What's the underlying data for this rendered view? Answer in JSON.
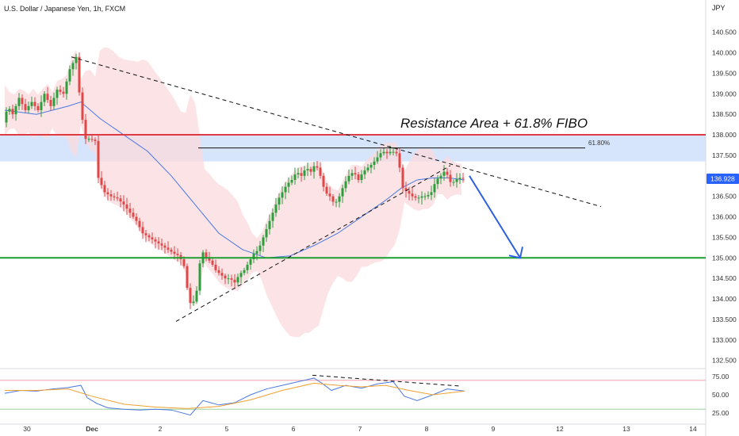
{
  "header": {
    "symbol_title": "U.S. Dollar / Japanese Yen, 1h, FXCM",
    "currency": "JPY"
  },
  "colors": {
    "resistance_line": "#e03a44",
    "support_line": "#1a9e2e",
    "resistance_zone": "#cfe0fb",
    "candle_up": "#2e9e3c",
    "candle_down": "#e04848",
    "moving_average": "#4a78e0",
    "envelope": "#fbdadd",
    "rsi_line": "#4a78e0",
    "rsi_signal": "#f0a030",
    "price_badge": "#2962ff",
    "forecast_arrow": "#2f62e0"
  },
  "chart_data": [
    {
      "type": "candlestick",
      "pair": "USD/JPY",
      "timeframe": "1h",
      "ylim": [
        132.3,
        140.9
      ],
      "y_ticks": [
        132.5,
        133.0,
        133.5,
        134.0,
        134.5,
        135.0,
        135.5,
        136.0,
        136.5,
        137.0,
        137.5,
        138.0,
        138.5,
        139.0,
        139.5,
        140.0,
        140.5
      ],
      "y_tick_labels": [
        "132.500",
        "133.000",
        "133.500",
        "134.000",
        "134.500",
        "135.000",
        "135.500",
        "136.000",
        "136.500",
        "137.000",
        "137.500",
        "138.000",
        "138.500",
        "139.000",
        "139.500",
        "140.000",
        "140.500"
      ],
      "x_ticks": [
        "30",
        "Dec",
        "2",
        "5",
        "6",
        "7",
        "8",
        "9",
        "12",
        "13",
        "14"
      ],
      "last_price": 136.928,
      "last_price_label": "136.928",
      "resistance_level": 138.0,
      "resistance_zone": [
        137.35,
        138.0
      ],
      "support_level": 135.0,
      "fibo_label": "61.80%",
      "fibo_level": 137.68,
      "annotation": "Resistance Area + 61.8% FIBO",
      "path": [
        [
          0,
          138.3
        ],
        [
          6,
          138.7
        ],
        [
          12,
          138.5
        ],
        [
          20,
          138.9
        ],
        [
          28,
          138.6
        ],
        [
          36,
          138.8
        ],
        [
          44,
          138.6
        ],
        [
          52,
          139.0
        ],
        [
          60,
          138.7
        ],
        [
          68,
          139.1
        ],
        [
          76,
          139.0
        ],
        [
          84,
          139.6
        ],
        [
          92,
          139.9
        ],
        [
          98,
          138.6
        ],
        [
          104,
          137.9
        ],
        [
          110,
          137.9
        ],
        [
          116,
          137.85
        ],
        [
          120,
          136.95
        ],
        [
          128,
          136.6
        ],
        [
          136,
          136.5
        ],
        [
          144,
          136.45
        ],
        [
          152,
          136.3
        ],
        [
          160,
          136.1
        ],
        [
          168,
          135.9
        ],
        [
          176,
          135.6
        ],
        [
          184,
          135.5
        ],
        [
          192,
          135.4
        ],
        [
          200,
          135.3
        ],
        [
          208,
          135.2
        ],
        [
          216,
          135.1
        ],
        [
          222,
          135.05
        ],
        [
          228,
          134.8
        ],
        [
          234,
          134.0
        ],
        [
          238,
          133.8
        ],
        [
          244,
          134.2
        ],
        [
          250,
          135.2
        ],
        [
          256,
          135.0
        ],
        [
          262,
          134.9
        ],
        [
          268,
          134.7
        ],
        [
          274,
          134.6
        ],
        [
          280,
          134.5
        ],
        [
          286,
          134.5
        ],
        [
          292,
          134.4
        ],
        [
          298,
          134.6
        ],
        [
          304,
          134.7
        ],
        [
          310,
          134.9
        ],
        [
          316,
          135.1
        ],
        [
          322,
          135.2
        ],
        [
          328,
          135.5
        ],
        [
          334,
          135.8
        ],
        [
          340,
          136.1
        ],
        [
          346,
          136.4
        ],
        [
          352,
          136.6
        ],
        [
          358,
          136.8
        ],
        [
          364,
          136.9
        ],
        [
          370,
          137.1
        ],
        [
          376,
          137.0
        ],
        [
          382,
          137.2
        ],
        [
          388,
          137.1
        ],
        [
          394,
          137.3
        ],
        [
          400,
          137.0
        ],
        [
          406,
          136.6
        ],
        [
          412,
          136.5
        ],
        [
          418,
          136.3
        ],
        [
          424,
          136.5
        ],
        [
          430,
          136.8
        ],
        [
          436,
          137.0
        ],
        [
          442,
          137.1
        ],
        [
          448,
          136.9
        ],
        [
          454,
          137.1
        ],
        [
          460,
          137.2
        ],
        [
          466,
          137.3
        ],
        [
          472,
          137.45
        ],
        [
          478,
          137.6
        ],
        [
          484,
          137.55
        ],
        [
          490,
          137.6
        ],
        [
          496,
          137.55
        ],
        [
          500,
          137.2
        ],
        [
          504,
          136.7
        ],
        [
          510,
          136.6
        ],
        [
          516,
          136.5
        ],
        [
          522,
          136.45
        ],
        [
          528,
          136.5
        ],
        [
          534,
          136.5
        ],
        [
          540,
          136.6
        ],
        [
          546,
          136.9
        ],
        [
          552,
          137.0
        ],
        [
          558,
          137.15
        ],
        [
          562,
          136.9
        ],
        [
          566,
          136.8
        ],
        [
          570,
          136.9
        ],
        [
          576,
          136.95
        ],
        [
          580,
          136.928
        ]
      ],
      "moving_average": [
        [
          0,
          138.6
        ],
        [
          40,
          138.5
        ],
        [
          80,
          138.7
        ],
        [
          96,
          138.8
        ],
        [
          120,
          138.4
        ],
        [
          150,
          138.0
        ],
        [
          180,
          137.6
        ],
        [
          210,
          137.0
        ],
        [
          240,
          136.3
        ],
        [
          270,
          135.6
        ],
        [
          300,
          135.2
        ],
        [
          330,
          135.0
        ],
        [
          360,
          135.05
        ],
        [
          390,
          135.3
        ],
        [
          420,
          135.6
        ],
        [
          450,
          136.0
        ],
        [
          480,
          136.4
        ],
        [
          500,
          136.7
        ],
        [
          520,
          136.9
        ],
        [
          540,
          136.95
        ],
        [
          560,
          136.95
        ],
        [
          580,
          136.9
        ]
      ],
      "trendlines": [
        {
          "from": [
            90,
            139.9
          ],
          "to": [
            758,
            136.25
          ],
          "style": "dashed"
        },
        {
          "from": [
            222,
            133.45
          ],
          "to": [
            568,
            137.25
          ],
          "style": "dashed"
        }
      ],
      "forecast_arrow": {
        "from": [
          592,
          137.0
        ],
        "to": [
          656,
          135.0
        ]
      }
    },
    {
      "type": "line",
      "indicator": "RSI",
      "ylim": [
        15,
        85
      ],
      "y_ticks": [
        25,
        50,
        75
      ],
      "y_tick_labels": [
        "25.00",
        "50.00",
        "75.00"
      ],
      "overbought": 70,
      "oversold": 30,
      "series": [
        {
          "values": [
            [
              0,
              52
            ],
            [
              20,
              56
            ],
            [
              40,
              55
            ],
            [
              60,
              58
            ],
            [
              80,
              60
            ],
            [
              96,
              63
            ],
            [
              104,
              46
            ],
            [
              116,
              38
            ],
            [
              130,
              32
            ],
            [
              150,
              30
            ],
            [
              170,
              29
            ],
            [
              190,
              30
            ],
            [
              210,
              29
            ],
            [
              234,
              22
            ],
            [
              250,
              42
            ],
            [
              270,
              36
            ],
            [
              290,
              39
            ],
            [
              310,
              50
            ],
            [
              330,
              58
            ],
            [
              350,
              63
            ],
            [
              370,
              68
            ],
            [
              390,
              73
            ],
            [
              400,
              66
            ],
            [
              412,
              56
            ],
            [
              430,
              63
            ],
            [
              450,
              59
            ],
            [
              470,
              65
            ],
            [
              490,
              68
            ],
            [
              504,
              48
            ],
            [
              520,
              42
            ],
            [
              540,
              50
            ],
            [
              558,
              58
            ],
            [
              580,
              55
            ]
          ]
        },
        {
          "values": [
            [
              0,
              56
            ],
            [
              40,
              56
            ],
            [
              80,
              58
            ],
            [
              110,
              48
            ],
            [
              150,
              37
            ],
            [
              190,
              33
            ],
            [
              230,
              31
            ],
            [
              270,
              34
            ],
            [
              310,
              43
            ],
            [
              350,
              56
            ],
            [
              390,
              66
            ],
            [
              420,
              63
            ],
            [
              450,
              61
            ],
            [
              480,
              63
            ],
            [
              510,
              56
            ],
            [
              540,
              50
            ],
            [
              580,
              55
            ]
          ]
        }
      ]
    }
  ]
}
